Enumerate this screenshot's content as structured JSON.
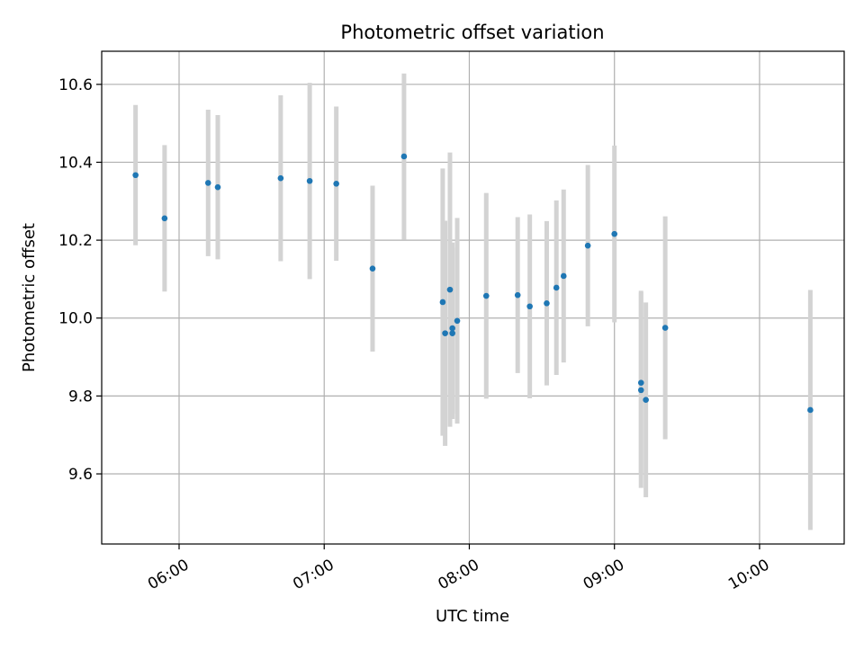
{
  "chart_data": {
    "type": "scatter",
    "title": "Photometric offset variation",
    "xlabel": "UTC time",
    "ylabel": "Photometric offset",
    "xlim": [
      "05:28",
      "10:35"
    ],
    "ylim": [
      9.42,
      10.685
    ],
    "x_ticks": [
      "06:00",
      "07:00",
      "08:00",
      "09:00",
      "10:00"
    ],
    "y_ticks": [
      9.6,
      9.8,
      10.0,
      10.2,
      10.4,
      10.6
    ],
    "grid": true,
    "colors": {
      "point": "#1f77b4",
      "errorbar": "#d3d3d3",
      "grid": "#b0b0b0"
    },
    "points": [
      {
        "time": "05:42",
        "y": 10.367,
        "yerr": 0.18
      },
      {
        "time": "05:54",
        "y": 10.256,
        "yerr": 0.188
      },
      {
        "time": "06:12",
        "y": 10.347,
        "yerr": 0.188
      },
      {
        "time": "06:16",
        "y": 10.336,
        "yerr": 0.185
      },
      {
        "time": "06:42",
        "y": 10.359,
        "yerr": 0.213
      },
      {
        "time": "06:54",
        "y": 10.352,
        "yerr": 0.252
      },
      {
        "time": "07:05",
        "y": 10.345,
        "yerr": 0.198
      },
      {
        "time": "07:20",
        "y": 10.127,
        "yerr": 0.213
      },
      {
        "time": "07:33",
        "y": 10.415,
        "yerr": 0.213
      },
      {
        "time": "07:49",
        "y": 10.041,
        "yerr": 0.343
      },
      {
        "time": "07:50",
        "y": 9.961,
        "yerr": 0.289
      },
      {
        "time": "07:52",
        "y": 10.073,
        "yerr": 0.352
      },
      {
        "time": "07:53",
        "y": 9.974,
        "yerr": 0.22
      },
      {
        "time": "07:53",
        "y": 9.961,
        "yerr": 0.22
      },
      {
        "time": "07:55",
        "y": 9.993,
        "yerr": 0.264
      },
      {
        "time": "08:07",
        "y": 10.057,
        "yerr": 0.264
      },
      {
        "time": "08:20",
        "y": 10.059,
        "yerr": 0.2
      },
      {
        "time": "08:25",
        "y": 10.03,
        "yerr": 0.236
      },
      {
        "time": "08:32",
        "y": 10.038,
        "yerr": 0.211
      },
      {
        "time": "08:36",
        "y": 10.078,
        "yerr": 0.224
      },
      {
        "time": "08:39",
        "y": 10.108,
        "yerr": 0.222
      },
      {
        "time": "08:49",
        "y": 10.186,
        "yerr": 0.207
      },
      {
        "time": "09:00",
        "y": 10.216,
        "yerr": 0.227
      },
      {
        "time": "09:11",
        "y": 9.834,
        "yerr": 0.236
      },
      {
        "time": "09:11",
        "y": 9.815,
        "yerr": 0.251
      },
      {
        "time": "09:13",
        "y": 9.79,
        "yerr": 0.25
      },
      {
        "time": "09:21",
        "y": 9.975,
        "yerr": 0.286
      },
      {
        "time": "10:21",
        "y": 9.764,
        "yerr": 0.308
      }
    ]
  }
}
